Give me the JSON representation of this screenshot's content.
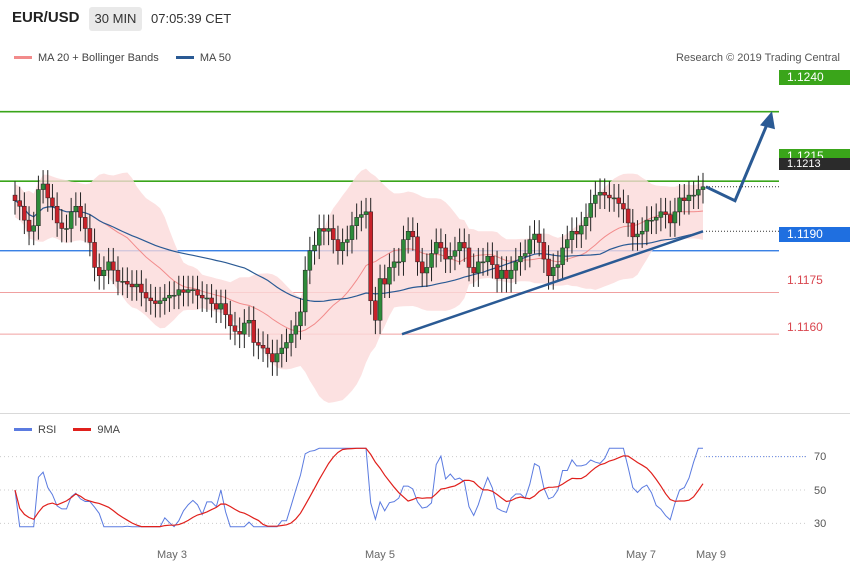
{
  "header": {
    "symbol": "EUR/USD",
    "timeframe": "30 MIN",
    "time": "07:05:39 CET"
  },
  "legend_main": [
    {
      "label": "MA 20 + Bollinger Bands",
      "color": "#f28b8b"
    },
    {
      "label": "MA 50",
      "color": "#2a5a94"
    }
  ],
  "copyright": "Research © 2019 Trading Central",
  "legend_rsi": [
    {
      "label": "RSI",
      "color": "#5b7be0"
    },
    {
      "label": "9MA",
      "color": "#e0201c"
    }
  ],
  "price_labels": [
    {
      "text": "1.1240",
      "style": "green"
    },
    {
      "text": "1.1215",
      "style": "green"
    },
    {
      "text": "1.1213",
      "style": "dark"
    },
    {
      "text": "1.1190",
      "style": "blue"
    },
    {
      "text": "1.1175",
      "style": "plain"
    },
    {
      "text": "1.1160",
      "style": "plain"
    }
  ],
  "rsi_ticks": [
    "70",
    "50",
    "30"
  ],
  "x_ticks": [
    "May 3",
    "May 5",
    "May 7",
    "May 9"
  ],
  "chart_data": [
    {
      "type": "candlestick",
      "description_levels": {
        "resistance_levels": [
          1.124,
          1.1215
        ],
        "pivot": 1.119,
        "support_levels": [
          1.1175,
          1.116
        ],
        "last_price": 1.1213
      },
      "ylim": [
        1.1132,
        1.1255
      ],
      "x_ticks": [
        "May 3",
        "May 5",
        "May 7",
        "May 9"
      ],
      "series": [
        {
          "name": "MA 20 + Bollinger Bands",
          "color": "#f28b8b"
        },
        {
          "name": "MA 50",
          "color": "#2a5a94"
        }
      ],
      "ohlc_close": [
        1.1208,
        1.1206,
        1.1201,
        1.1197,
        1.1199,
        1.1212,
        1.1214,
        1.1209,
        1.1206,
        1.12,
        1.1198,
        1.1198,
        1.1204,
        1.1206,
        1.1202,
        1.1198,
        1.1193,
        1.1184,
        1.1181,
        1.1183,
        1.1186,
        1.1183,
        1.1179,
        1.1179,
        1.1178,
        1.1177,
        1.1178,
        1.1175,
        1.1173,
        1.1172,
        1.1171,
        1.1172,
        1.1173,
        1.1174,
        1.1174,
        1.1176,
        1.1175,
        1.1176,
        1.1176,
        1.1174,
        1.1173,
        1.1173,
        1.1171,
        1.1169,
        1.1171,
        1.1167,
        1.1163,
        1.1161,
        1.116,
        1.1164,
        1.1165,
        1.1157,
        1.1156,
        1.1155,
        1.1153,
        1.115,
        1.1153,
        1.1155,
        1.1157,
        1.116,
        1.1163,
        1.1168,
        1.1183,
        1.119,
        1.1192,
        1.1198,
        1.1197,
        1.1198,
        1.1194,
        1.119,
        1.1193,
        1.1194,
        1.1199,
        1.1202,
        1.1203,
        1.1204,
        1.1172,
        1.1165,
        1.118,
        1.1178,
        1.1184,
        1.1186,
        1.1186,
        1.1194,
        1.1197,
        1.1195,
        1.1186,
        1.1182,
        1.1184,
        1.1189,
        1.1193,
        1.1191,
        1.1187,
        1.1188,
        1.119,
        1.1193,
        1.1191,
        1.1184,
        1.1182,
        1.1186,
        1.1186,
        1.1188,
        1.1185,
        1.118,
        1.1183,
        1.118,
        1.1183,
        1.1186,
        1.1188,
        1.1189,
        1.1194,
        1.1196,
        1.1193,
        1.1187,
        1.1181,
        1.1184,
        1.1185,
        1.1191,
        1.1194,
        1.1197,
        1.1196,
        1.1199,
        1.1202,
        1.1207,
        1.121,
        1.1211,
        1.121,
        1.1209,
        1.1209,
        1.1207,
        1.1205,
        1.12,
        1.1195,
        1.1196,
        1.1197,
        1.1201,
        1.1201,
        1.1202,
        1.1204,
        1.1203,
        1.12,
        1.1204,
        1.1209,
        1.1208,
        1.121,
        1.121,
        1.1212,
        1.1213
      ],
      "trendlines": [
        {
          "name": "support",
          "from": 1.116,
          "to": 1.1197
        },
        {
          "name": "projection",
          "points": [
            1.1213,
            1.1208,
            1.1238
          ]
        }
      ]
    },
    {
      "type": "line",
      "title": "RSI",
      "ylim": [
        20,
        80
      ],
      "y_ticks": [
        30,
        50,
        70
      ],
      "series": [
        {
          "name": "RSI",
          "color": "#5b7be0"
        },
        {
          "name": "9MA",
          "color": "#e0201c"
        }
      ],
      "last_values": {
        "RSI": 69,
        "9MA": 60
      }
    }
  ]
}
